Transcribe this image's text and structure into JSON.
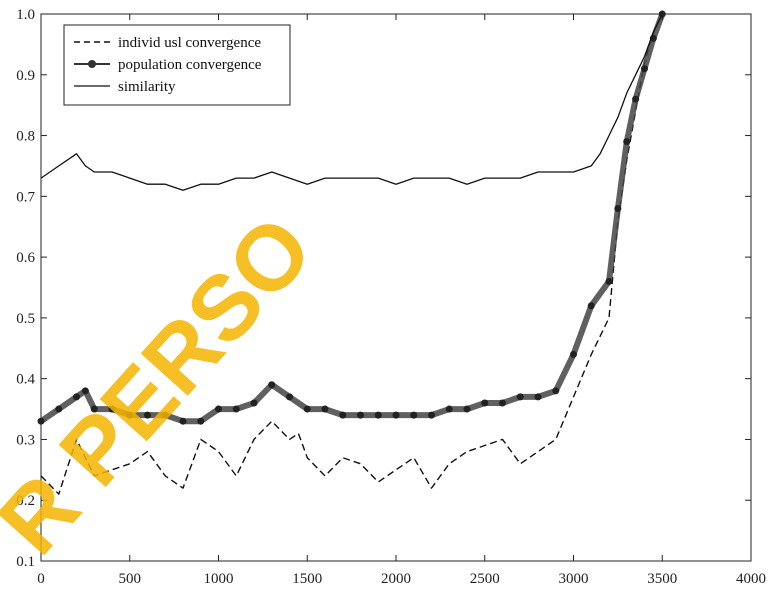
{
  "chart_data": {
    "type": "line",
    "title": "",
    "xlabel": "",
    "ylabel": "",
    "xlim": [
      0,
      4000
    ],
    "ylim": [
      0.1,
      1.0
    ],
    "x_ticks": [
      0,
      500,
      1000,
      1500,
      2000,
      2500,
      3000,
      3500,
      4000
    ],
    "y_ticks": [
      0.1,
      0.2,
      0.3,
      0.4,
      0.5,
      0.6,
      0.7,
      0.8,
      0.9,
      1.0
    ],
    "x_tick_labels": [
      "0",
      "500",
      "1000",
      "1500",
      "2000",
      "2500",
      "3000",
      "3500",
      "4000"
    ],
    "y_tick_labels": [
      "0.1",
      "0.2",
      "0.3",
      "0.4",
      "0.5",
      "0.6",
      "0.7",
      "0.8",
      "0.9",
      "1.0"
    ],
    "grid": false,
    "legend_position": "top-left",
    "series": [
      {
        "name": "individ usl convergence",
        "style": "dashed",
        "color": "#111111",
        "x": [
          0,
          100,
          200,
          250,
          300,
          400,
          500,
          600,
          700,
          800,
          900,
          1000,
          1100,
          1200,
          1300,
          1400,
          1450,
          1500,
          1600,
          1700,
          1800,
          1900,
          2000,
          2100,
          2200,
          2300,
          2400,
          2500,
          2600,
          2700,
          2800,
          2900,
          3000,
          3100,
          3200,
          3250,
          3300,
          3350,
          3400,
          3450,
          3500
        ],
        "y": [
          0.24,
          0.21,
          0.3,
          0.27,
          0.24,
          0.25,
          0.26,
          0.28,
          0.24,
          0.22,
          0.3,
          0.28,
          0.24,
          0.3,
          0.33,
          0.3,
          0.31,
          0.27,
          0.24,
          0.27,
          0.26,
          0.23,
          0.25,
          0.27,
          0.22,
          0.26,
          0.28,
          0.29,
          0.3,
          0.26,
          0.28,
          0.3,
          0.37,
          0.44,
          0.5,
          0.66,
          0.76,
          0.84,
          0.92,
          0.97,
          1.0
        ]
      },
      {
        "name": "population convergence",
        "style": "thick-marker",
        "color": "#444444",
        "x": [
          0,
          100,
          200,
          250,
          300,
          400,
          500,
          600,
          700,
          800,
          900,
          1000,
          1100,
          1200,
          1300,
          1400,
          1500,
          1600,
          1700,
          1800,
          1900,
          2000,
          2100,
          2200,
          2300,
          2400,
          2500,
          2600,
          2700,
          2800,
          2900,
          3000,
          3100,
          3200,
          3250,
          3300,
          3350,
          3400,
          3450,
          3500
        ],
        "y": [
          0.33,
          0.35,
          0.37,
          0.38,
          0.35,
          0.35,
          0.34,
          0.34,
          0.34,
          0.33,
          0.33,
          0.35,
          0.35,
          0.36,
          0.39,
          0.37,
          0.35,
          0.35,
          0.34,
          0.34,
          0.34,
          0.34,
          0.34,
          0.34,
          0.35,
          0.35,
          0.36,
          0.36,
          0.37,
          0.37,
          0.38,
          0.44,
          0.52,
          0.56,
          0.68,
          0.79,
          0.86,
          0.91,
          0.96,
          1.0
        ]
      },
      {
        "name": "similarity",
        "style": "solid",
        "color": "#111111",
        "x": [
          0,
          100,
          200,
          250,
          300,
          400,
          500,
          600,
          700,
          800,
          900,
          1000,
          1100,
          1200,
          1300,
          1400,
          1500,
          1600,
          1700,
          1800,
          1900,
          2000,
          2100,
          2200,
          2300,
          2400,
          2500,
          2600,
          2700,
          2800,
          2900,
          3000,
          3100,
          3150,
          3200,
          3250,
          3300,
          3350,
          3400,
          3450,
          3500
        ],
        "y": [
          0.73,
          0.75,
          0.77,
          0.75,
          0.74,
          0.74,
          0.73,
          0.72,
          0.72,
          0.71,
          0.72,
          0.72,
          0.73,
          0.73,
          0.74,
          0.73,
          0.72,
          0.73,
          0.73,
          0.73,
          0.73,
          0.72,
          0.73,
          0.73,
          0.73,
          0.72,
          0.73,
          0.73,
          0.73,
          0.74,
          0.74,
          0.74,
          0.75,
          0.77,
          0.8,
          0.83,
          0.87,
          0.9,
          0.93,
          0.97,
          1.0
        ]
      }
    ]
  },
  "watermark": {
    "text": "R PERSO",
    "color": "#f5b400"
  }
}
